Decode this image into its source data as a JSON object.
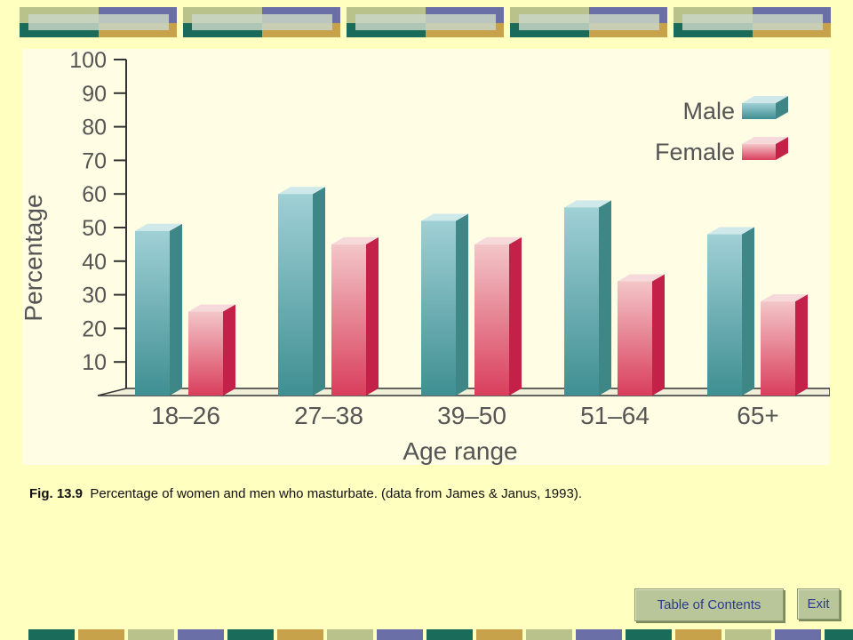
{
  "caption": {
    "fig_label": "Fig. 13.9",
    "text": "Percentage of women and men who masturbate. (data from James & Janus, 1993)."
  },
  "buttons": {
    "toc_label": "Table of Contents",
    "exit_label": "Exit"
  },
  "colors": {
    "background": "#ffffc0",
    "panel": "#fffde4",
    "male": "#6fb3ba",
    "female": "#e0546e",
    "band_teal": "#1a6b5a",
    "band_olive": "#b9c28a",
    "band_purple": "#6a6fa8",
    "band_gold": "#c8a24a"
  },
  "chart_data": {
    "type": "bar",
    "title": "",
    "xlabel": "Age range",
    "ylabel": "Percentage",
    "ylim": [
      0,
      100
    ],
    "yticks": [
      "10",
      "20",
      "30",
      "40",
      "50",
      "60",
      "70",
      "80",
      "90",
      "100"
    ],
    "categories": [
      "18–26",
      "27–38",
      "39–50",
      "51–64",
      "65+"
    ],
    "series": [
      {
        "name": "Male",
        "values": [
          49,
          60,
          52,
          56,
          48
        ]
      },
      {
        "name": "Female",
        "values": [
          25,
          45,
          45,
          34,
          28
        ]
      }
    ],
    "grid": false,
    "legend": "top-right"
  }
}
